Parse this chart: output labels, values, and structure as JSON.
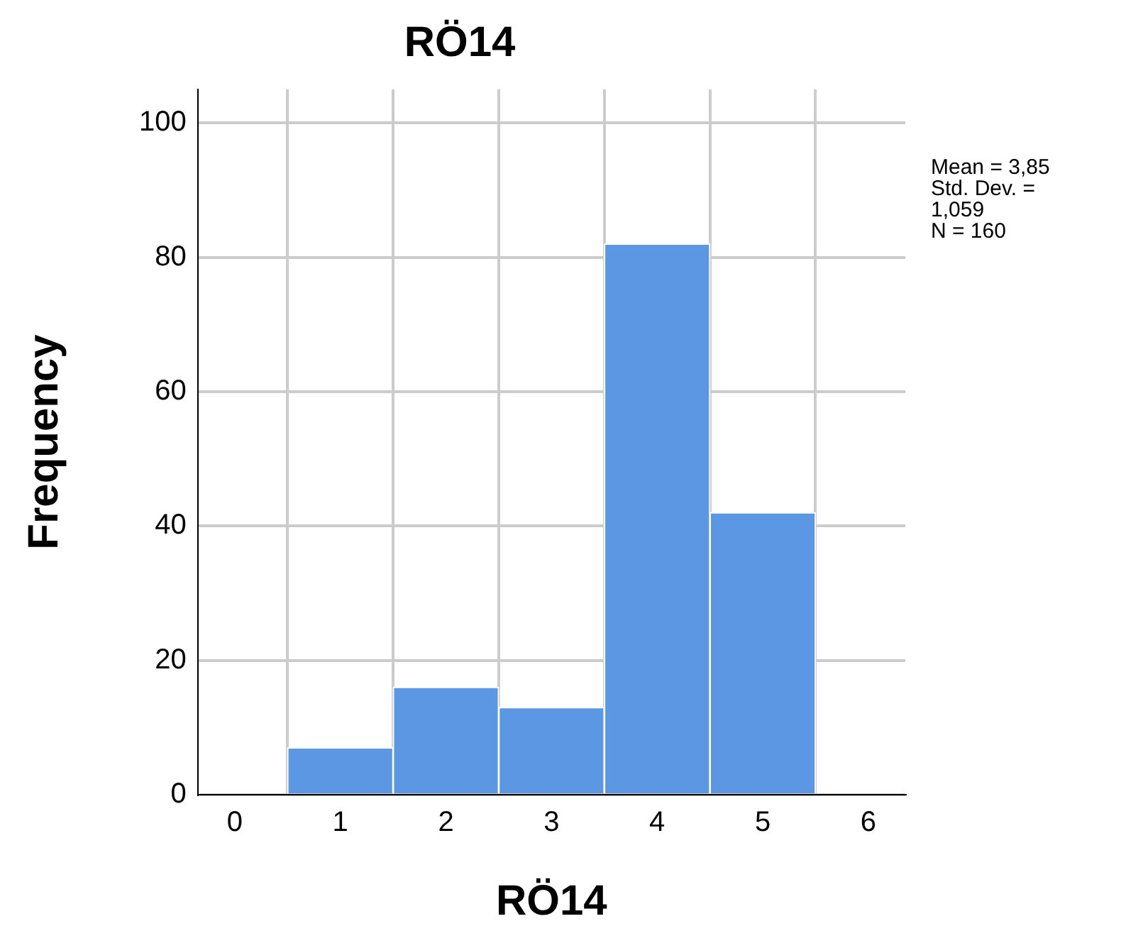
{
  "chart_data": {
    "type": "histogram",
    "title": "RÖ14",
    "xlabel": "RÖ14",
    "ylabel": "Frequency",
    "bins": [
      0.5,
      1.5,
      2.5,
      3.5,
      4.5,
      5.5
    ],
    "values": [
      7,
      16,
      13,
      82,
      42
    ],
    "color": "#5b97e2",
    "xlim": [
      -0.35,
      6.35
    ],
    "xticks": [
      0,
      1,
      2,
      3,
      4,
      5,
      6
    ],
    "ylim": [
      0,
      105
    ],
    "yticks": [
      0,
      20,
      40,
      60,
      80,
      100
    ],
    "grid": true,
    "legend": false,
    "annotations": [
      "Mean = 3,85",
      "Std. Dev. =\n1,059",
      "N = 160"
    ]
  }
}
